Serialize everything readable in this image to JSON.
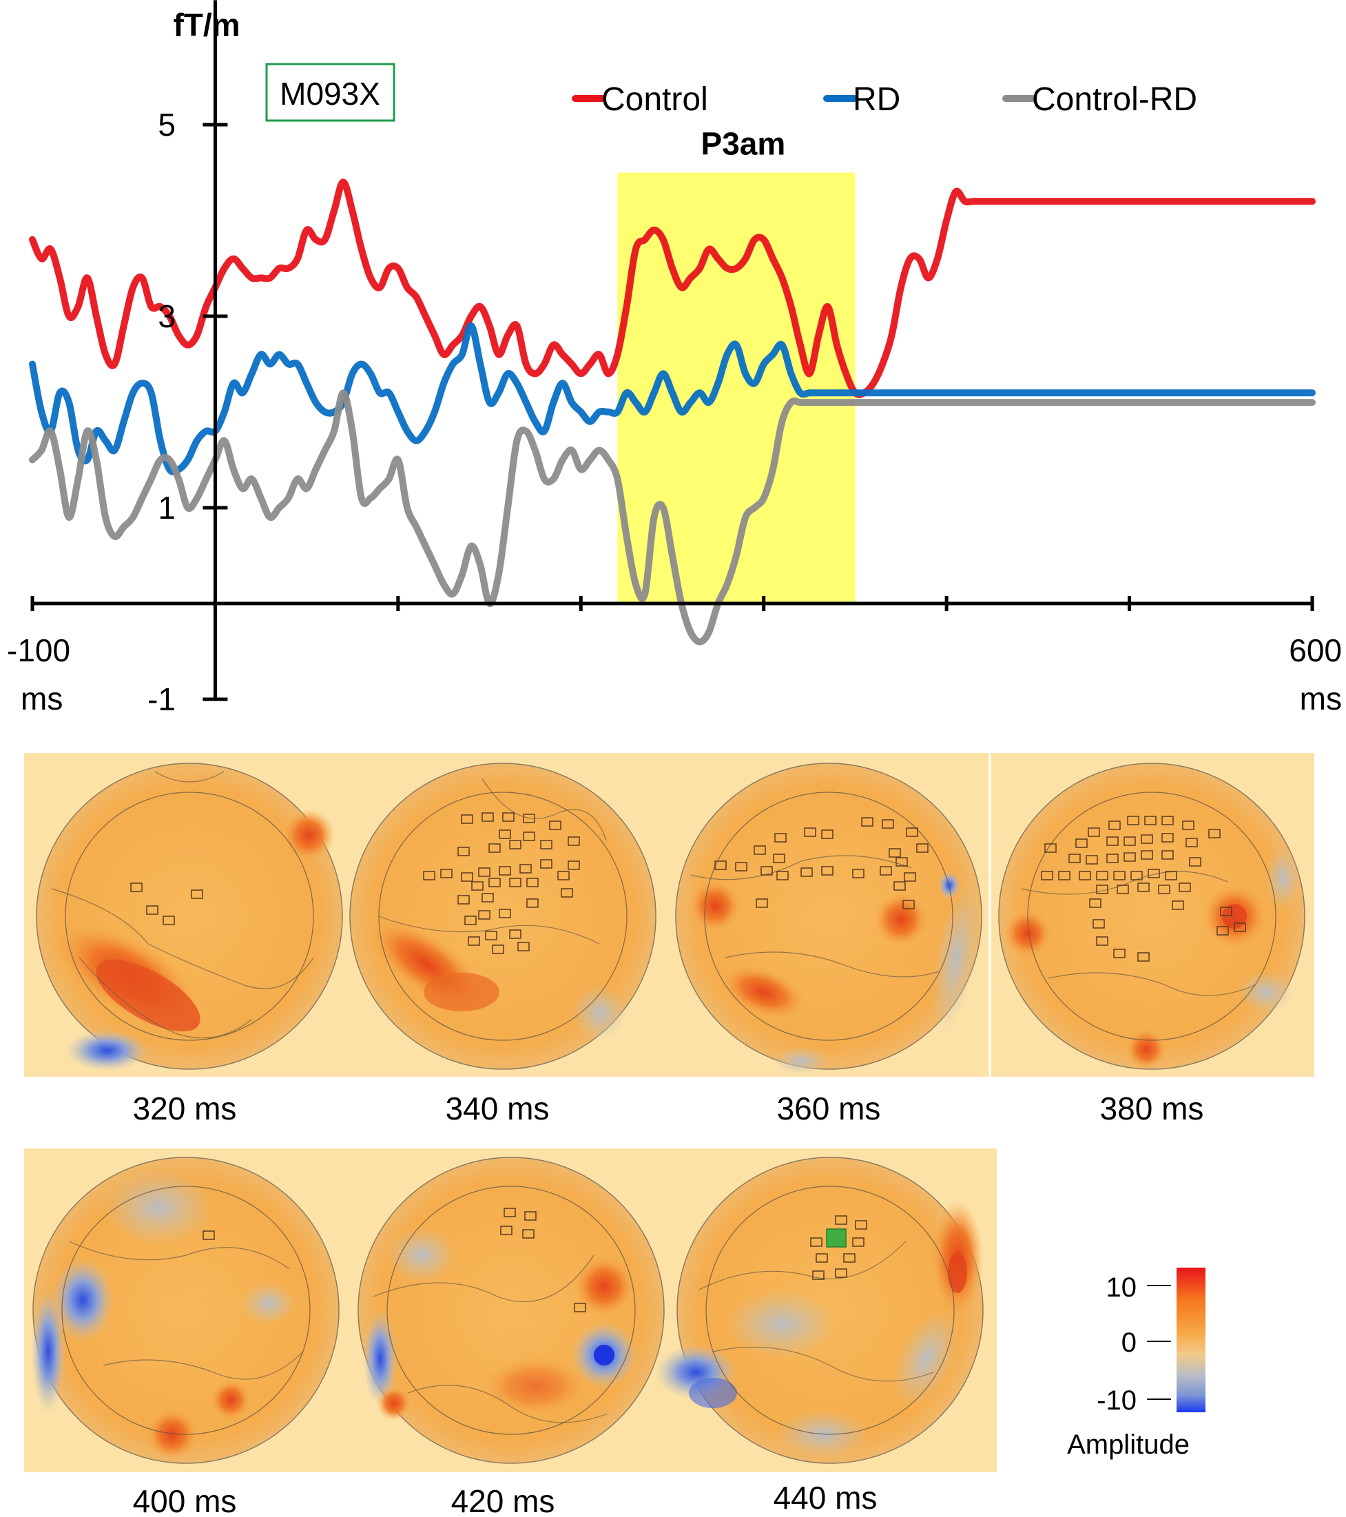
{
  "chart_data": {
    "type": "line",
    "title": "",
    "ylabel": "fT/m",
    "xlabel": "",
    "channel": "M093X",
    "xlim": [
      -100,
      600
    ],
    "ylim": [
      -1,
      6
    ],
    "x_tick_labels": [
      {
        "value": -100,
        "label": "-100",
        "unit": "ms"
      },
      {
        "value": 600,
        "label": "600",
        "unit": "ms"
      }
    ],
    "x_ticks": [
      -100,
      0,
      100,
      200,
      300,
      400,
      500,
      600
    ],
    "y_tick_labels": [
      {
        "value": 5,
        "label": "5"
      },
      {
        "value": 3,
        "label": "3"
      },
      {
        "value": 1,
        "label": "1"
      },
      {
        "value": -1,
        "label": "-1"
      }
    ],
    "highlight": {
      "label": "P3am",
      "x_start": 220,
      "x_end": 350,
      "color": "#ffff66"
    },
    "legend_position": "top-right",
    "series": [
      {
        "name": "Control",
        "color": "#e8141b",
        "x": [
          -100,
          -95,
          -90,
          -85,
          -80,
          -75,
          -70,
          -65,
          -60,
          -55,
          -50,
          -45,
          -40,
          -35,
          -30,
          -25,
          -20,
          -15,
          -10,
          -5,
          0,
          5,
          10,
          15,
          20,
          25,
          30,
          35,
          40,
          45,
          50,
          55,
          60,
          65,
          70,
          75,
          80,
          85,
          90,
          95,
          100,
          105,
          110,
          115,
          120,
          125,
          130,
          135,
          140,
          145,
          150,
          155,
          160,
          165,
          170,
          175,
          180,
          185,
          190,
          195,
          200,
          205,
          210,
          215,
          220,
          225,
          230,
          235,
          240,
          245,
          250,
          255,
          260,
          265,
          270,
          275,
          280,
          285,
          290,
          295,
          300,
          305,
          310,
          315,
          320,
          325,
          330,
          335,
          340,
          345,
          350,
          355,
          360,
          365,
          370,
          375,
          380,
          385,
          390,
          395,
          400,
          405,
          410,
          415,
          420,
          425,
          430,
          435,
          440,
          445,
          450,
          455,
          460,
          465,
          470,
          475,
          480,
          485,
          490,
          495,
          500,
          505,
          510,
          515,
          520,
          525,
          530,
          535,
          540,
          545,
          550,
          555,
          560,
          565,
          570,
          575,
          580,
          585,
          590,
          595,
          600
        ],
        "values": [
          3.8,
          3.6,
          3.7,
          3.4,
          3.0,
          3.1,
          3.4,
          3.0,
          2.6,
          2.5,
          2.9,
          3.3,
          3.4,
          3.1,
          3.1,
          3.0,
          2.8,
          2.7,
          2.8,
          3.1,
          3.3,
          3.5,
          3.6,
          3.5,
          3.4,
          3.4,
          3.4,
          3.5,
          3.5,
          3.6,
          3.9,
          3.8,
          3.8,
          4.1,
          4.4,
          4.1,
          3.7,
          3.4,
          3.3,
          3.5,
          3.5,
          3.3,
          3.2,
          3.0,
          2.8,
          2.6,
          2.7,
          2.8,
          3.0,
          3.1,
          2.9,
          2.6,
          2.8,
          2.9,
          2.5,
          2.4,
          2.5,
          2.7,
          2.6,
          2.5,
          2.4,
          2.5,
          2.6,
          2.4,
          2.6,
          3.1,
          3.7,
          3.8,
          3.9,
          3.8,
          3.5,
          3.3,
          3.4,
          3.5,
          3.7,
          3.6,
          3.5,
          3.5,
          3.6,
          3.8,
          3.8,
          3.6,
          3.4,
          3.1,
          2.7,
          2.4,
          2.8,
          3.1,
          2.7,
          2.4,
          2.2,
          2.2,
          2.3,
          2.5,
          2.8,
          3.3,
          3.6,
          3.6,
          3.4,
          3.6,
          4.0,
          4.3,
          4.2,
          4.2,
          4.2,
          4.2,
          4.2,
          4.2,
          4.2,
          4.2,
          4.2,
          4.2,
          4.2,
          4.2,
          4.2,
          4.2,
          4.2,
          4.2,
          4.2,
          4.2,
          4.2,
          4.2,
          4.2,
          4.2,
          4.2,
          4.2,
          4.2,
          4.2,
          4.2,
          4.2,
          4.2,
          4.2,
          4.2,
          4.2,
          4.2,
          4.2,
          4.2,
          4.2,
          4.2,
          4.2,
          4.2
        ]
      },
      {
        "name": "RD",
        "color": "#0a6fc4",
        "x": [
          -100,
          -95,
          -90,
          -85,
          -80,
          -75,
          -70,
          -65,
          -60,
          -55,
          -50,
          -45,
          -40,
          -35,
          -30,
          -25,
          -20,
          -15,
          -10,
          -5,
          0,
          5,
          10,
          15,
          20,
          25,
          30,
          35,
          40,
          45,
          50,
          55,
          60,
          65,
          70,
          75,
          80,
          85,
          90,
          95,
          100,
          105,
          110,
          115,
          120,
          125,
          130,
          135,
          140,
          145,
          150,
          155,
          160,
          165,
          170,
          175,
          180,
          185,
          190,
          195,
          200,
          205,
          210,
          215,
          220,
          225,
          230,
          235,
          240,
          245,
          250,
          255,
          260,
          265,
          270,
          275,
          280,
          285,
          290,
          295,
          300,
          305,
          310,
          315,
          320,
          325,
          330,
          335,
          340,
          345,
          350,
          355,
          360,
          365,
          370,
          375,
          380,
          385,
          390,
          395,
          400,
          405,
          410,
          415,
          420,
          425,
          430,
          435,
          440,
          445,
          450,
          455,
          460,
          465,
          470,
          475,
          480,
          485,
          490,
          495,
          500,
          505,
          510,
          515,
          520,
          525,
          530,
          535,
          540,
          545,
          550,
          555,
          560,
          565,
          570,
          575,
          580,
          585,
          590,
          595,
          600
        ],
        "values": [
          2.5,
          2.0,
          1.8,
          2.2,
          2.1,
          1.6,
          1.5,
          1.8,
          1.7,
          1.6,
          1.9,
          2.2,
          2.3,
          2.2,
          1.7,
          1.4,
          1.4,
          1.5,
          1.7,
          1.8,
          1.8,
          2.0,
          2.3,
          2.2,
          2.4,
          2.6,
          2.5,
          2.6,
          2.5,
          2.5,
          2.3,
          2.1,
          2.0,
          2.0,
          2.1,
          2.4,
          2.5,
          2.4,
          2.2,
          2.2,
          2.0,
          1.8,
          1.7,
          1.8,
          2.0,
          2.3,
          2.5,
          2.6,
          2.9,
          2.5,
          2.1,
          2.2,
          2.4,
          2.3,
          2.1,
          1.9,
          1.8,
          2.1,
          2.3,
          2.1,
          2.0,
          1.9,
          2.0,
          2.0,
          2.0,
          2.2,
          2.1,
          2.0,
          2.2,
          2.4,
          2.2,
          2.0,
          2.1,
          2.2,
          2.1,
          2.3,
          2.6,
          2.7,
          2.4,
          2.3,
          2.5,
          2.6,
          2.7,
          2.4,
          2.2,
          2.2,
          2.2,
          2.2,
          2.2,
          2.2,
          2.2,
          2.2,
          2.2,
          2.2,
          2.2,
          2.2,
          2.2,
          2.2,
          2.2,
          2.2,
          2.2,
          2.2,
          2.2,
          2.2,
          2.2,
          2.2,
          2.2,
          2.2,
          2.2,
          2.2,
          2.2,
          2.2,
          2.2,
          2.2,
          2.2,
          2.2,
          2.2,
          2.2,
          2.2,
          2.2,
          2.2,
          2.2,
          2.2,
          2.2,
          2.2,
          2.2,
          2.2,
          2.2,
          2.2,
          2.2,
          2.2,
          2.2,
          2.2,
          2.2,
          2.2,
          2.2,
          2.2,
          2.2,
          2.2,
          2.2,
          2.2
        ]
      },
      {
        "name": "Control-RD",
        "color": "#8c8c8c",
        "x": [
          -100,
          -95,
          -90,
          -85,
          -80,
          -75,
          -70,
          -65,
          -60,
          -55,
          -50,
          -45,
          -40,
          -35,
          -30,
          -25,
          -20,
          -15,
          -10,
          -5,
          0,
          5,
          10,
          15,
          20,
          25,
          30,
          35,
          40,
          45,
          50,
          55,
          60,
          65,
          70,
          75,
          80,
          85,
          90,
          95,
          100,
          105,
          110,
          115,
          120,
          125,
          130,
          135,
          140,
          145,
          150,
          155,
          160,
          165,
          170,
          175,
          180,
          185,
          190,
          195,
          200,
          205,
          210,
          215,
          220,
          225,
          230,
          235,
          240,
          245,
          250,
          255,
          260,
          265,
          270,
          275,
          280,
          285,
          290,
          295,
          300,
          305,
          310,
          315,
          320,
          325,
          330,
          335,
          340,
          345,
          350,
          355,
          360,
          365,
          370,
          375,
          380,
          385,
          390,
          395,
          400,
          405,
          410,
          415,
          420,
          425,
          430,
          435,
          440,
          445,
          450,
          455,
          460,
          465,
          470,
          475,
          480,
          485,
          490,
          495,
          500,
          505,
          510,
          515,
          520,
          525,
          530,
          535,
          540,
          545,
          550,
          555,
          560,
          565,
          570,
          575,
          580,
          585,
          590,
          595,
          600
        ],
        "values": [
          1.5,
          1.6,
          1.8,
          1.4,
          0.9,
          1.3,
          1.8,
          1.5,
          0.9,
          0.7,
          0.8,
          0.9,
          1.1,
          1.3,
          1.5,
          1.5,
          1.3,
          1.0,
          1.1,
          1.3,
          1.5,
          1.7,
          1.4,
          1.2,
          1.3,
          1.1,
          0.9,
          1.0,
          1.1,
          1.3,
          1.2,
          1.4,
          1.6,
          1.8,
          2.2,
          1.8,
          1.1,
          1.1,
          1.2,
          1.3,
          1.5,
          1.0,
          0.8,
          0.6,
          0.4,
          0.2,
          0.1,
          0.3,
          0.6,
          0.4,
          0.0,
          0.3,
          1.0,
          1.7,
          1.8,
          1.6,
          1.3,
          1.3,
          1.5,
          1.6,
          1.4,
          1.5,
          1.6,
          1.5,
          1.3,
          0.7,
          0.2,
          0.1,
          0.9,
          1.0,
          0.5,
          0.0,
          -0.3,
          -0.4,
          -0.3,
          0.0,
          0.2,
          0.5,
          0.9,
          1.0,
          1.1,
          1.4,
          1.9,
          2.1,
          2.1,
          2.1,
          2.1,
          2.1,
          2.1,
          2.1,
          2.1,
          2.1,
          2.1,
          2.1,
          2.1,
          2.1,
          2.1,
          2.1,
          2.1,
          2.1,
          2.1,
          2.1,
          2.1,
          2.1,
          2.1,
          2.1,
          2.1,
          2.1,
          2.1,
          2.1,
          2.1,
          2.1,
          2.1,
          2.1,
          2.1,
          2.1,
          2.1,
          2.1,
          2.1,
          2.1,
          2.1,
          2.1,
          2.1,
          2.1,
          2.1,
          2.1,
          2.1,
          2.1,
          2.1,
          2.1,
          2.1,
          2.1,
          2.1,
          2.1,
          2.1,
          2.1,
          2.1,
          2.1,
          2.1,
          2.1,
          2.1
        ]
      }
    ]
  },
  "topomaps": {
    "row1": [
      {
        "label": "320 ms"
      },
      {
        "label": "340 ms"
      },
      {
        "label": "360 ms"
      },
      {
        "label": "380 ms"
      }
    ],
    "row2": [
      {
        "label": "400 ms"
      },
      {
        "label": "420 ms"
      },
      {
        "label": "440 ms"
      }
    ]
  },
  "colorbar": {
    "title": "Amplitude",
    "ticks": [
      {
        "value": 10,
        "label": "10"
      },
      {
        "value": 0,
        "label": "0"
      },
      {
        "value": -10,
        "label": "-10"
      }
    ],
    "colors": [
      "#e8141b",
      "#f6761f",
      "#f6a845",
      "#f2c98a",
      "#b8bcc6",
      "#7d96d6",
      "#1b39f0"
    ]
  }
}
